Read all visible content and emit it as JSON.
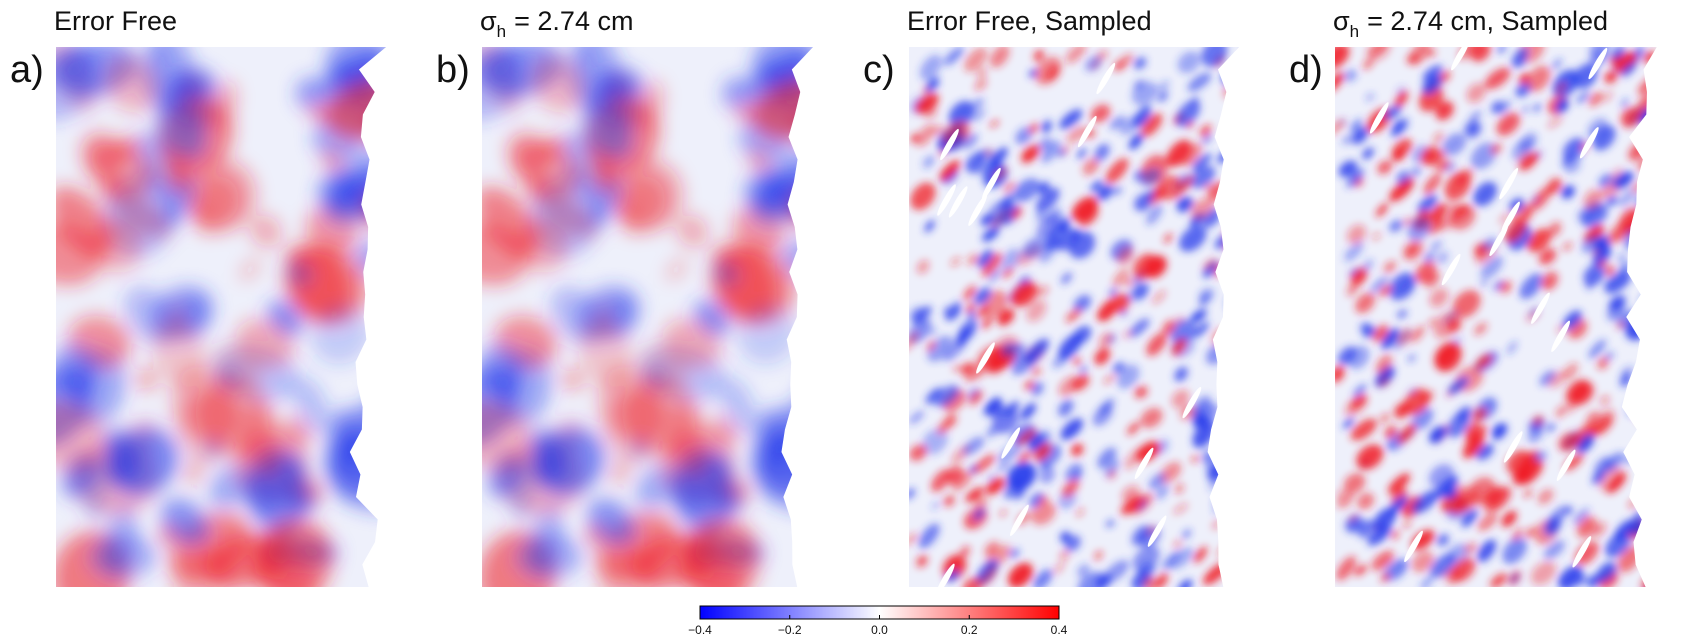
{
  "panels": [
    {
      "letter": "a)",
      "title": "Error Free"
    },
    {
      "letter": "b)",
      "symbol": "σ",
      "subscript": "h",
      "title": "= 2.74 cm"
    },
    {
      "letter": "c)",
      "title": "Error Free, Sampled"
    },
    {
      "letter": "d)",
      "symbol": "σ",
      "subscript": "h",
      "title": "= 2.74 cm, Sampled"
    }
  ],
  "colorbar": {
    "range": [
      -0.4,
      0.4
    ],
    "colors": [
      "#0000ff",
      "#ffffff",
      "#ff0000"
    ],
    "ticks": [
      {
        "value": -0.4,
        "label": "−0.4"
      },
      {
        "value": -0.2,
        "label": "−0.2"
      },
      {
        "value": 0,
        "label": "0.0"
      },
      0.2,
      0.4
    ]
  }
}
